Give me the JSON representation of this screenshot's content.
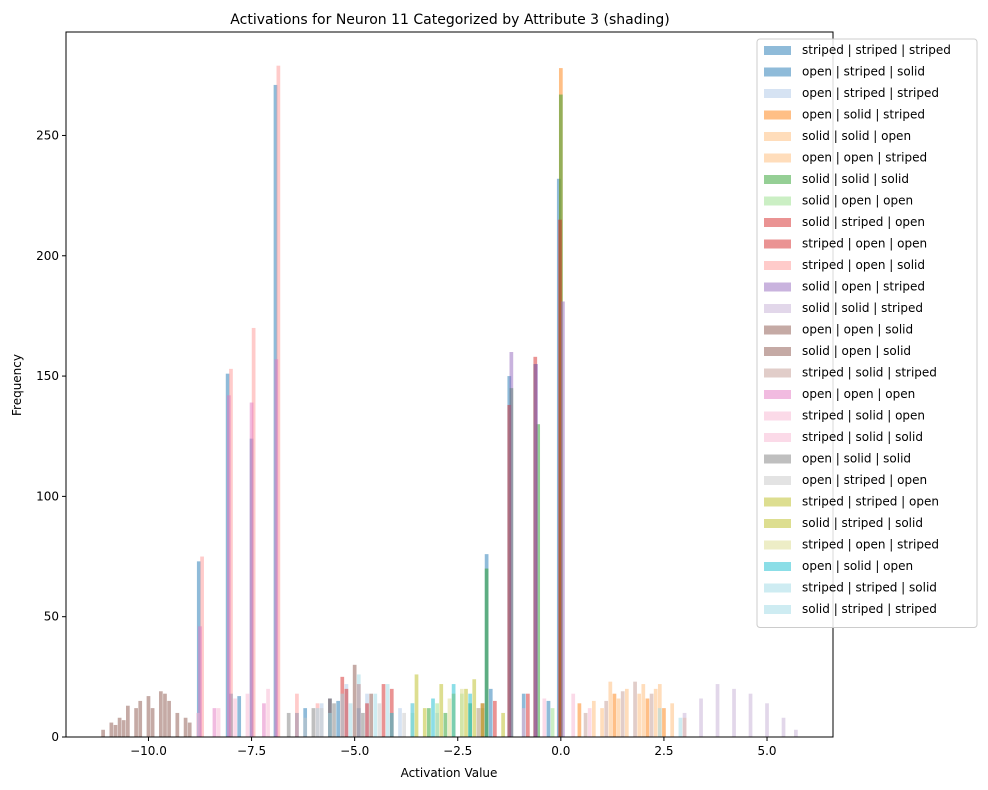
{
  "chart_data": {
    "type": "histogram",
    "title": "Activations for Neuron 11 Categorized by Attribute 3 (shading)",
    "xlabel": "Activation Value",
    "ylabel": "Frequency",
    "xlim": [
      -12.0,
      6.6
    ],
    "ylim": [
      0,
      293
    ],
    "xticks": [
      -10.0,
      -7.5,
      -5.0,
      -2.5,
      0.0,
      2.5,
      5.0
    ],
    "xtick_labels": [
      "−10.0",
      "−7.5",
      "−5.0",
      "−2.5",
      "0.0",
      "2.5",
      "5.0"
    ],
    "yticks": [
      0,
      50,
      100,
      150,
      200,
      250
    ],
    "bin_width": 0.09,
    "legend_position": "upper right (outside)",
    "series": [
      {
        "name": "striped | striped | striped",
        "color": "#1f77b4",
        "alpha": 0.5,
        "bars": [
          [
            -8.78,
            73
          ],
          [
            -8.08,
            151
          ],
          [
            -7.5,
            124
          ],
          [
            -6.92,
            271
          ],
          [
            -6.2,
            12
          ],
          [
            -5.6,
            16
          ],
          [
            -1.8,
            76
          ],
          [
            -1.25,
            150
          ],
          [
            -0.62,
            155
          ],
          [
            -0.05,
            232
          ]
        ]
      },
      {
        "name": "open | striped | solid",
        "color": "#1f77b4",
        "alpha": 0.5,
        "bars": [
          [
            -8.0,
            18
          ],
          [
            -7.8,
            17
          ],
          [
            -6.4,
            10
          ],
          [
            -5.4,
            15
          ],
          [
            -4.9,
            12
          ],
          [
            -1.7,
            20
          ],
          [
            -0.9,
            18
          ],
          [
            -0.3,
            15
          ]
        ]
      },
      {
        "name": "open | striped | striped",
        "color": "#aec7e8",
        "alpha": 0.5,
        "bars": [
          [
            -5.8,
            14
          ],
          [
            -5.2,
            22
          ],
          [
            -4.7,
            18
          ],
          [
            -3.9,
            12
          ],
          [
            -3.0,
            10
          ]
        ]
      },
      {
        "name": "open | solid | striped",
        "color": "#ff7f0e",
        "alpha": 0.5,
        "bars": [
          [
            -0.0,
            278
          ],
          [
            0.45,
            14
          ],
          [
            1.3,
            18
          ],
          [
            2.1,
            16
          ],
          [
            2.5,
            12
          ]
        ]
      },
      {
        "name": "solid | solid | open",
        "color": "#ffbb78",
        "alpha": 0.5,
        "bars": [
          [
            0.8,
            15
          ],
          [
            1.2,
            23
          ],
          [
            1.6,
            20
          ],
          [
            2.0,
            22
          ],
          [
            2.4,
            22
          ],
          [
            2.7,
            14
          ]
        ]
      },
      {
        "name": "open | open | striped",
        "color": "#ffbb78",
        "alpha": 0.5,
        "bars": [
          [
            1.0,
            12
          ],
          [
            1.4,
            16
          ],
          [
            1.9,
            18
          ],
          [
            2.3,
            20
          ],
          [
            3.0,
            8
          ]
        ]
      },
      {
        "name": "solid | solid | solid",
        "color": "#2ca02c",
        "alpha": 0.5,
        "bars": [
          [
            -1.8,
            70
          ],
          [
            -1.2,
            145
          ],
          [
            -0.55,
            130
          ],
          [
            0.0,
            267
          ],
          [
            -3.2,
            12
          ],
          [
            -2.8,
            10
          ],
          [
            -2.2,
            14
          ]
        ]
      },
      {
        "name": "solid | open | open",
        "color": "#98df8a",
        "alpha": 0.5,
        "bars": [
          [
            -3.6,
            10
          ],
          [
            -3.0,
            14
          ],
          [
            -2.4,
            18
          ],
          [
            -1.9,
            12
          ],
          [
            -0.2,
            12
          ]
        ]
      },
      {
        "name": "solid | striped | open",
        "color": "#d62728",
        "alpha": 0.5,
        "bars": [
          [
            -1.25,
            138
          ],
          [
            -0.62,
            158
          ],
          [
            -0.02,
            215
          ],
          [
            -5.3,
            25
          ],
          [
            -4.9,
            22
          ],
          [
            -4.1,
            20
          ],
          [
            -1.6,
            15
          ]
        ]
      },
      {
        "name": "striped | open | open",
        "color": "#d62728",
        "alpha": 0.5,
        "bars": [
          [
            -5.2,
            20
          ],
          [
            -4.7,
            14
          ],
          [
            -4.3,
            22
          ],
          [
            -1.9,
            14
          ],
          [
            -0.8,
            18
          ]
        ]
      },
      {
        "name": "striped | open | solid",
        "color": "#ff9896",
        "alpha": 0.5,
        "bars": [
          [
            -8.7,
            75
          ],
          [
            -8.0,
            153
          ],
          [
            -7.45,
            170
          ],
          [
            -6.85,
            279
          ],
          [
            -6.4,
            18
          ],
          [
            -5.9,
            14
          ]
        ]
      },
      {
        "name": "solid | open | striped",
        "color": "#9467bd",
        "alpha": 0.5,
        "bars": [
          [
            -1.2,
            160
          ],
          [
            -0.6,
            155
          ],
          [
            0.05,
            181
          ],
          [
            -2.0,
            12
          ]
        ]
      },
      {
        "name": "solid | solid | striped",
        "color": "#c5b0d5",
        "alpha": 0.5,
        "bars": [
          [
            3.0,
            10
          ],
          [
            3.4,
            16
          ],
          [
            3.8,
            22
          ],
          [
            4.2,
            20
          ],
          [
            4.6,
            18
          ],
          [
            5.0,
            14
          ],
          [
            5.4,
            8
          ],
          [
            5.7,
            3
          ]
        ]
      },
      {
        "name": "open | open | solid",
        "color": "#8c564b",
        "alpha": 0.5,
        "bars": [
          [
            -11.1,
            3
          ],
          [
            -10.9,
            6
          ],
          [
            -10.7,
            8
          ],
          [
            -10.5,
            13
          ],
          [
            -10.3,
            12
          ],
          [
            -10.0,
            17
          ],
          [
            -9.7,
            19
          ],
          [
            -9.5,
            15
          ],
          [
            -9.3,
            10
          ],
          [
            -9.1,
            8
          ]
        ]
      },
      {
        "name": "solid | open | solid",
        "color": "#8c564b",
        "alpha": 0.5,
        "bars": [
          [
            -10.8,
            5
          ],
          [
            -10.6,
            7
          ],
          [
            -10.2,
            15
          ],
          [
            -9.9,
            12
          ],
          [
            -9.6,
            18
          ],
          [
            -9.0,
            6
          ],
          [
            -5.6,
            16
          ],
          [
            -5.0,
            30
          ],
          [
            -4.6,
            18
          ]
        ]
      },
      {
        "name": "striped | solid | striped",
        "color": "#c49c94",
        "alpha": 0.5,
        "bars": [
          [
            0.6,
            10
          ],
          [
            1.1,
            15
          ],
          [
            1.5,
            19
          ],
          [
            1.8,
            23
          ],
          [
            2.2,
            18
          ]
        ]
      },
      {
        "name": "open | open | open",
        "color": "#e377c2",
        "alpha": 0.5,
        "bars": [
          [
            -8.75,
            46
          ],
          [
            -8.05,
            142
          ],
          [
            -7.5,
            139
          ],
          [
            -6.9,
            157
          ],
          [
            -8.4,
            12
          ],
          [
            -7.2,
            14
          ]
        ]
      },
      {
        "name": "striped | solid | open",
        "color": "#f7b6d2",
        "alpha": 0.5,
        "bars": [
          [
            -8.8,
            10
          ],
          [
            -8.3,
            12
          ],
          [
            -7.9,
            16
          ],
          [
            -7.6,
            18
          ],
          [
            -7.1,
            20
          ]
        ]
      },
      {
        "name": "striped | solid | solid",
        "color": "#f7b6d2",
        "alpha": 0.5,
        "bars": [
          [
            -0.9,
            12
          ],
          [
            -0.4,
            16
          ],
          [
            0.3,
            18
          ],
          [
            0.7,
            12
          ]
        ]
      },
      {
        "name": "open | solid | solid",
        "color": "#7f7f7f",
        "alpha": 0.5,
        "bars": [
          [
            -6.6,
            10
          ],
          [
            -6.0,
            12
          ],
          [
            -5.5,
            14
          ],
          [
            -4.8,
            10
          ]
        ]
      },
      {
        "name": "open | striped | open",
        "color": "#c7c7c7",
        "alpha": 0.5,
        "bars": [
          [
            -6.2,
            8
          ],
          [
            -5.8,
            12
          ],
          [
            -4.4,
            14
          ],
          [
            -3.8,
            10
          ]
        ]
      },
      {
        "name": "striped | striped | open",
        "color": "#bcbd22",
        "alpha": 0.5,
        "bars": [
          [
            -3.5,
            26
          ],
          [
            -2.9,
            22
          ],
          [
            -2.3,
            20
          ],
          [
            -2.1,
            24
          ]
        ]
      },
      {
        "name": "solid | striped | solid",
        "color": "#bcbd22",
        "alpha": 0.5,
        "bars": [
          [
            -3.3,
            12
          ],
          [
            -2.6,
            18
          ],
          [
            -1.9,
            14
          ],
          [
            -1.4,
            10
          ]
        ]
      },
      {
        "name": "striped | open | striped",
        "color": "#dbdb8d",
        "alpha": 0.5,
        "bars": [
          [
            -2.7,
            16
          ],
          [
            -2.4,
            20
          ],
          [
            -2.0,
            12
          ]
        ]
      },
      {
        "name": "open | solid | open",
        "color": "#17becf",
        "alpha": 0.5,
        "bars": [
          [
            -4.1,
            10
          ],
          [
            -3.6,
            14
          ],
          [
            -3.1,
            16
          ],
          [
            -2.6,
            22
          ],
          [
            -2.2,
            18
          ]
        ]
      },
      {
        "name": "striped | striped | solid",
        "color": "#9edae5",
        "alpha": 0.5,
        "bars": [
          [
            -5.9,
            12
          ],
          [
            -5.3,
            18
          ],
          [
            -4.9,
            26
          ],
          [
            -4.2,
            22
          ],
          [
            -3.6,
            14
          ]
        ]
      },
      {
        "name": "solid | striped | striped",
        "color": "#9edae5",
        "alpha": 0.5,
        "bars": [
          [
            -5.6,
            10
          ],
          [
            -5.1,
            14
          ],
          [
            -4.5,
            18
          ],
          [
            2.4,
            12
          ],
          [
            2.9,
            8
          ]
        ]
      }
    ]
  }
}
